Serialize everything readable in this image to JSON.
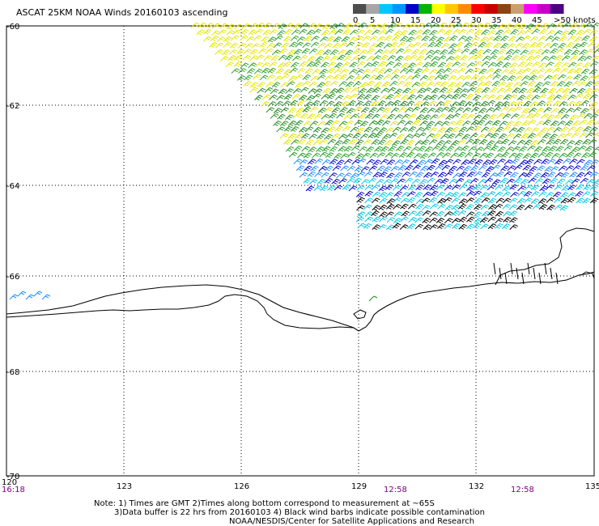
{
  "title": "ASCAT 25KM NOAA Winds 20160103 ascending",
  "legend": {
    "colors": [
      "#4d4d4d",
      "#a6a6a6",
      "#00c8ff",
      "#0096ff",
      "#0000c8",
      "#00b400",
      "#ffff00",
      "#ffc800",
      "#ff8c00",
      "#ff0000",
      "#c80000",
      "#8b4513",
      "#c8a070",
      "#ff00ff",
      "#c800c8",
      "#4b0082"
    ],
    "ticks": [
      "0",
      "5",
      "10",
      "15",
      "20",
      "25",
      "30",
      "35",
      "40",
      "45",
      ">50 knots"
    ]
  },
  "axes": {
    "lat_labels": [
      "-60",
      "-62",
      "-64",
      "-66",
      "-68",
      "-70"
    ],
    "lon_labels": [
      "120",
      "123",
      "126",
      "129",
      "132",
      "135"
    ]
  },
  "times": {
    "t1": "16:18",
    "t2": "12:58",
    "t3": "12:58"
  },
  "notes": {
    "line1": "Note: 1) Times are GMT 2)Times along bottom correspond to measurement at ~65S",
    "line2": "3)Data buffer is 22 hrs from 20160103 4) Black wind barbs indicate possible contamination",
    "line3": "NOAA/NESDIS/Center for Satellite Applications and Research"
  }
}
